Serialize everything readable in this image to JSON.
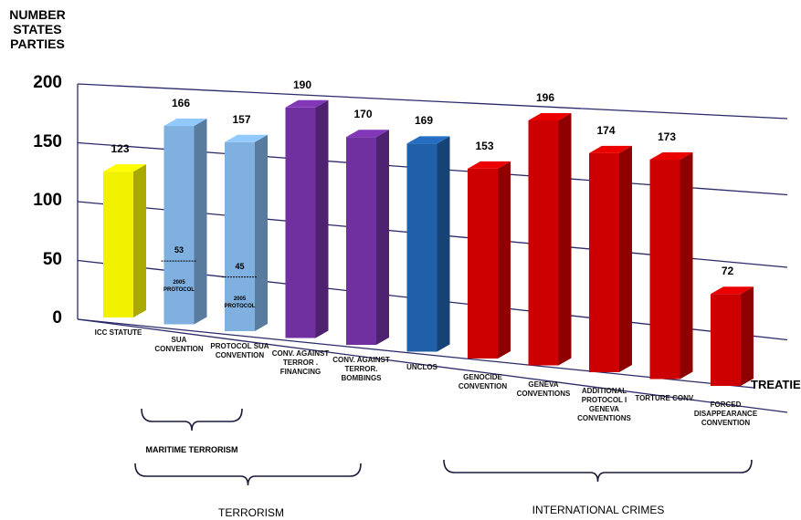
{
  "chart_data": {
    "type": "bar",
    "ylabel": "NUMBER\nSTATES\nPARTIES",
    "xlabel": "TREATIES",
    "ylim": [
      0,
      200
    ],
    "yticks": [
      "200",
      "150",
      "100",
      "50",
      "0"
    ],
    "grid": true,
    "categories": [
      "ICC STATUTE",
      "SUA\nCONVENTION",
      "PROTOCOL SUA\nCONVENTION",
      "CONV. AGAINST\nTERROR .\nFINANCING",
      "CONV. AGAINST\nTERROR.\nBOMBINGS",
      "UNCLOS",
      "GENOCIDE\nCONVENTION",
      "GENEVA\nCONVENTIONS",
      "ADDITIONAL\nPROTOCOL I\nGENEVA\nCONVENTIONS",
      "TORTURE CONV.",
      "FORCED\nDISAPPEARANCE\nCONVENTION"
    ],
    "values": [
      123,
      166,
      157,
      190,
      170,
      169,
      153,
      196,
      174,
      173,
      72
    ],
    "value_labels": [
      "123",
      "166",
      "157",
      "190",
      "170",
      "169",
      "153",
      "196",
      "174",
      "173",
      "72"
    ],
    "colors": [
      "#f2f200",
      "#7fb0e0",
      "#7fb0e0",
      "#7030a0",
      "#7030a0",
      "#2060a8",
      "#cc0000",
      "#cc0000",
      "#cc0000",
      "#cc0000",
      "#cc0000"
    ],
    "sub_markers": [
      {
        "category_index": 1,
        "value": 53,
        "label": "53",
        "note": "2005\nPROTOCOL"
      },
      {
        "category_index": 2,
        "value": 45,
        "label": "45",
        "note": "2005\nPROTOCOL"
      }
    ],
    "groups": [
      {
        "label": "MARITIME TERRORISM",
        "from": 1,
        "to": 2
      },
      {
        "label": "TERRORISM",
        "from": 1,
        "to": 4
      },
      {
        "label": "INTERNATIONAL CRIMES",
        "from": 6,
        "to": 10
      }
    ]
  }
}
